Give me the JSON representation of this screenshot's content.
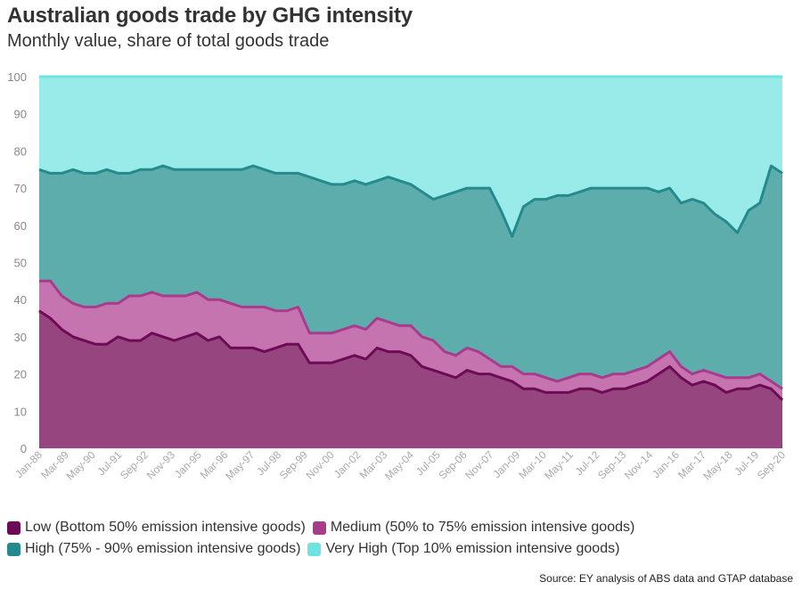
{
  "header": {
    "title": "Australian goods trade by GHG intensity",
    "subtitle": "Monthly value, share of total goods trade"
  },
  "source": "Source: EY analysis of ABS data and GTAP database",
  "colors": {
    "low_fill": "#96457f",
    "low_line": "#6d0b57",
    "medium_fill": "#c674b0",
    "medium_line": "#a93b8c",
    "high_fill": "#5dadad",
    "high_line": "#258a8c",
    "veryhigh_fill": "#99ebea",
    "veryhigh_line": "#6ee3e0"
  },
  "chart_data": {
    "type": "area",
    "stacked": true,
    "y_unit": "percent",
    "ylim": [
      0,
      100
    ],
    "yticks": [
      0,
      10,
      20,
      30,
      40,
      50,
      60,
      70,
      80,
      90,
      100
    ],
    "xlim": [
      "Jan-88",
      "Dec-20"
    ],
    "xtick_labels": [
      "Jan-88",
      "Mar-89",
      "May-90",
      "Jul-91",
      "Sep-92",
      "Nov-93",
      "Jan-95",
      "Mar-96",
      "May-97",
      "Jul-98",
      "Sep-99",
      "Nov-00",
      "Jan-02",
      "Mar-03",
      "May-04",
      "Jul-05",
      "Sep-06",
      "Nov-07",
      "Jan-09",
      "Mar-10",
      "May-11",
      "Jul-12",
      "Sep-13",
      "Nov-14",
      "Jan-16",
      "Mar-17",
      "May-18",
      "Jul-19",
      "Sep-20"
    ],
    "cumulative_series_note": "values are cumulative stack boundaries (share of total goods trade, %)",
    "x": [
      "Jan-88",
      "Jul-88",
      "Jan-89",
      "Jul-89",
      "Jan-90",
      "Jul-90",
      "Jan-91",
      "Jul-91",
      "Jan-92",
      "Jul-92",
      "Jan-93",
      "Jul-93",
      "Jan-94",
      "Jul-94",
      "Jan-95",
      "Jul-95",
      "Jan-96",
      "Jul-96",
      "Jan-97",
      "Jul-97",
      "Jan-98",
      "Jul-98",
      "Jan-99",
      "Jul-99",
      "Jan-00",
      "Jul-00",
      "Jan-01",
      "Jul-01",
      "Jan-02",
      "Jul-02",
      "Jan-03",
      "Jul-03",
      "Jan-04",
      "Jul-04",
      "Jan-05",
      "Jul-05",
      "Jan-06",
      "Jul-06",
      "Jan-07",
      "Jul-07",
      "Jan-08",
      "Jul-08",
      "Jan-09",
      "Jul-09",
      "Jan-10",
      "Jul-10",
      "Jan-11",
      "Jul-11",
      "Jan-12",
      "Jul-12",
      "Jan-13",
      "Jul-13",
      "Jan-14",
      "Jul-14",
      "Jan-15",
      "Jul-15",
      "Jan-16",
      "Jul-16",
      "Jan-17",
      "Jul-17",
      "Jan-18",
      "Jul-18",
      "Jan-19",
      "Jul-19",
      "Jan-20",
      "Jul-20",
      "Dec-20"
    ],
    "series": [
      {
        "name": "Low (Bottom 50% emission intensive goods)",
        "values": [
          37,
          35,
          32,
          30,
          29,
          28,
          28,
          30,
          29,
          29,
          31,
          30,
          29,
          30,
          31,
          29,
          30,
          27,
          27,
          27,
          26,
          27,
          28,
          28,
          23,
          23,
          23,
          24,
          25,
          24,
          27,
          26,
          26,
          25,
          22,
          21,
          20,
          19,
          21,
          20,
          20,
          19,
          18,
          16,
          16,
          15,
          15,
          15,
          16,
          16,
          15,
          16,
          16,
          17,
          18,
          20,
          22,
          19,
          17,
          18,
          17,
          15,
          16,
          16,
          17,
          16,
          13
        ]
      },
      {
        "name": "Medium (50% to 75% emission intensive goods)",
        "values": [
          45,
          45,
          41,
          39,
          38,
          38,
          39,
          39,
          41,
          41,
          42,
          41,
          41,
          41,
          42,
          40,
          40,
          39,
          38,
          38,
          38,
          37,
          37,
          38,
          31,
          31,
          31,
          32,
          33,
          32,
          35,
          34,
          33,
          33,
          30,
          29,
          26,
          25,
          27,
          26,
          24,
          22,
          22,
          20,
          20,
          19,
          18,
          19,
          20,
          20,
          19,
          20,
          20,
          21,
          22,
          24,
          26,
          22,
          20,
          21,
          20,
          19,
          19,
          19,
          20,
          18,
          16
        ]
      },
      {
        "name": "High (75% - 90% emission intensive goods)",
        "values": [
          75,
          74,
          74,
          75,
          74,
          74,
          75,
          74,
          74,
          75,
          75,
          76,
          75,
          75,
          75,
          75,
          75,
          75,
          75,
          76,
          75,
          74,
          74,
          74,
          73,
          72,
          71,
          71,
          72,
          71,
          72,
          73,
          72,
          71,
          69,
          67,
          68,
          69,
          70,
          70,
          70,
          64,
          57,
          65,
          67,
          67,
          68,
          68,
          69,
          70,
          70,
          70,
          70,
          70,
          70,
          69,
          70,
          66,
          67,
          66,
          63,
          61,
          58,
          64,
          66,
          76,
          74
        ]
      },
      {
        "name": "Very High (Top 10% emission intensive goods)",
        "values": [
          100,
          100,
          100,
          100,
          100,
          100,
          100,
          100,
          100,
          100,
          100,
          100,
          100,
          100,
          100,
          100,
          100,
          100,
          100,
          100,
          100,
          100,
          100,
          100,
          100,
          100,
          100,
          100,
          100,
          100,
          100,
          100,
          100,
          100,
          100,
          100,
          100,
          100,
          100,
          100,
          100,
          100,
          100,
          100,
          100,
          100,
          100,
          100,
          100,
          100,
          100,
          100,
          100,
          100,
          100,
          100,
          100,
          100,
          100,
          100,
          100,
          100,
          100,
          100,
          100,
          100,
          100
        ]
      }
    ]
  },
  "legend": {
    "low": "Low (Bottom 50% emission intensive goods)",
    "medium": "Medium (50% to 75% emission intensive goods)",
    "high": "High (75% - 90% emission intensive goods)",
    "veryhigh": "Very High (Top 10% emission intensive goods)"
  }
}
